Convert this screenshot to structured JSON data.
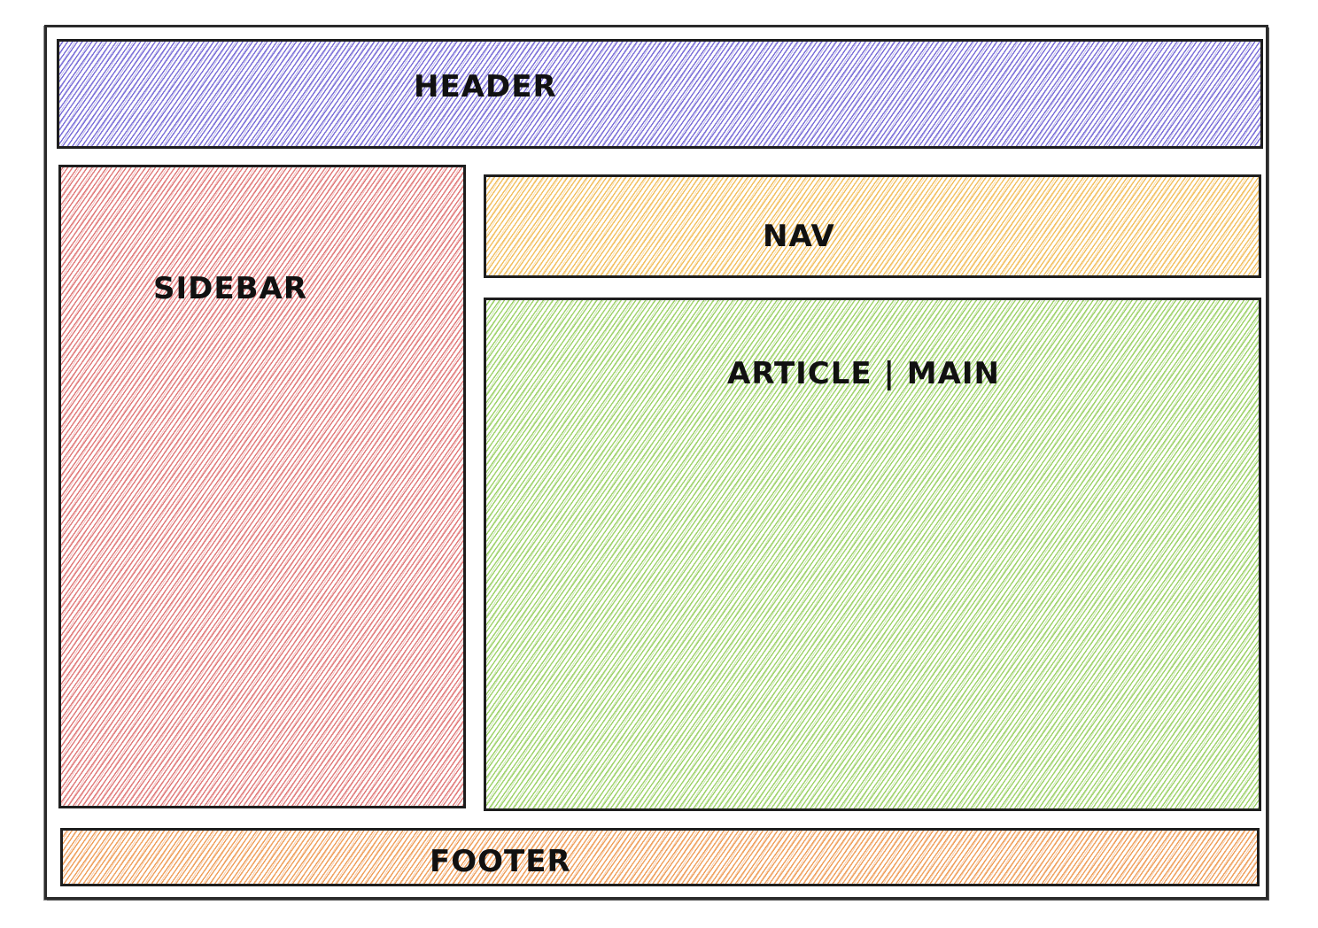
{
  "diagram": {
    "regions": {
      "header": {
        "label": "HEADER",
        "color": "#7b6fd8"
      },
      "sidebar": {
        "label": "SIDEBAR",
        "color": "#e07b7b"
      },
      "nav": {
        "label": "NAV",
        "color": "#f2c061"
      },
      "article": {
        "label": "ARTICLE | MAIN",
        "color": "#9fd36b"
      },
      "footer": {
        "label": "FOOTER",
        "color": "#efa05c"
      }
    },
    "outline_color": "#1e1e1e"
  }
}
